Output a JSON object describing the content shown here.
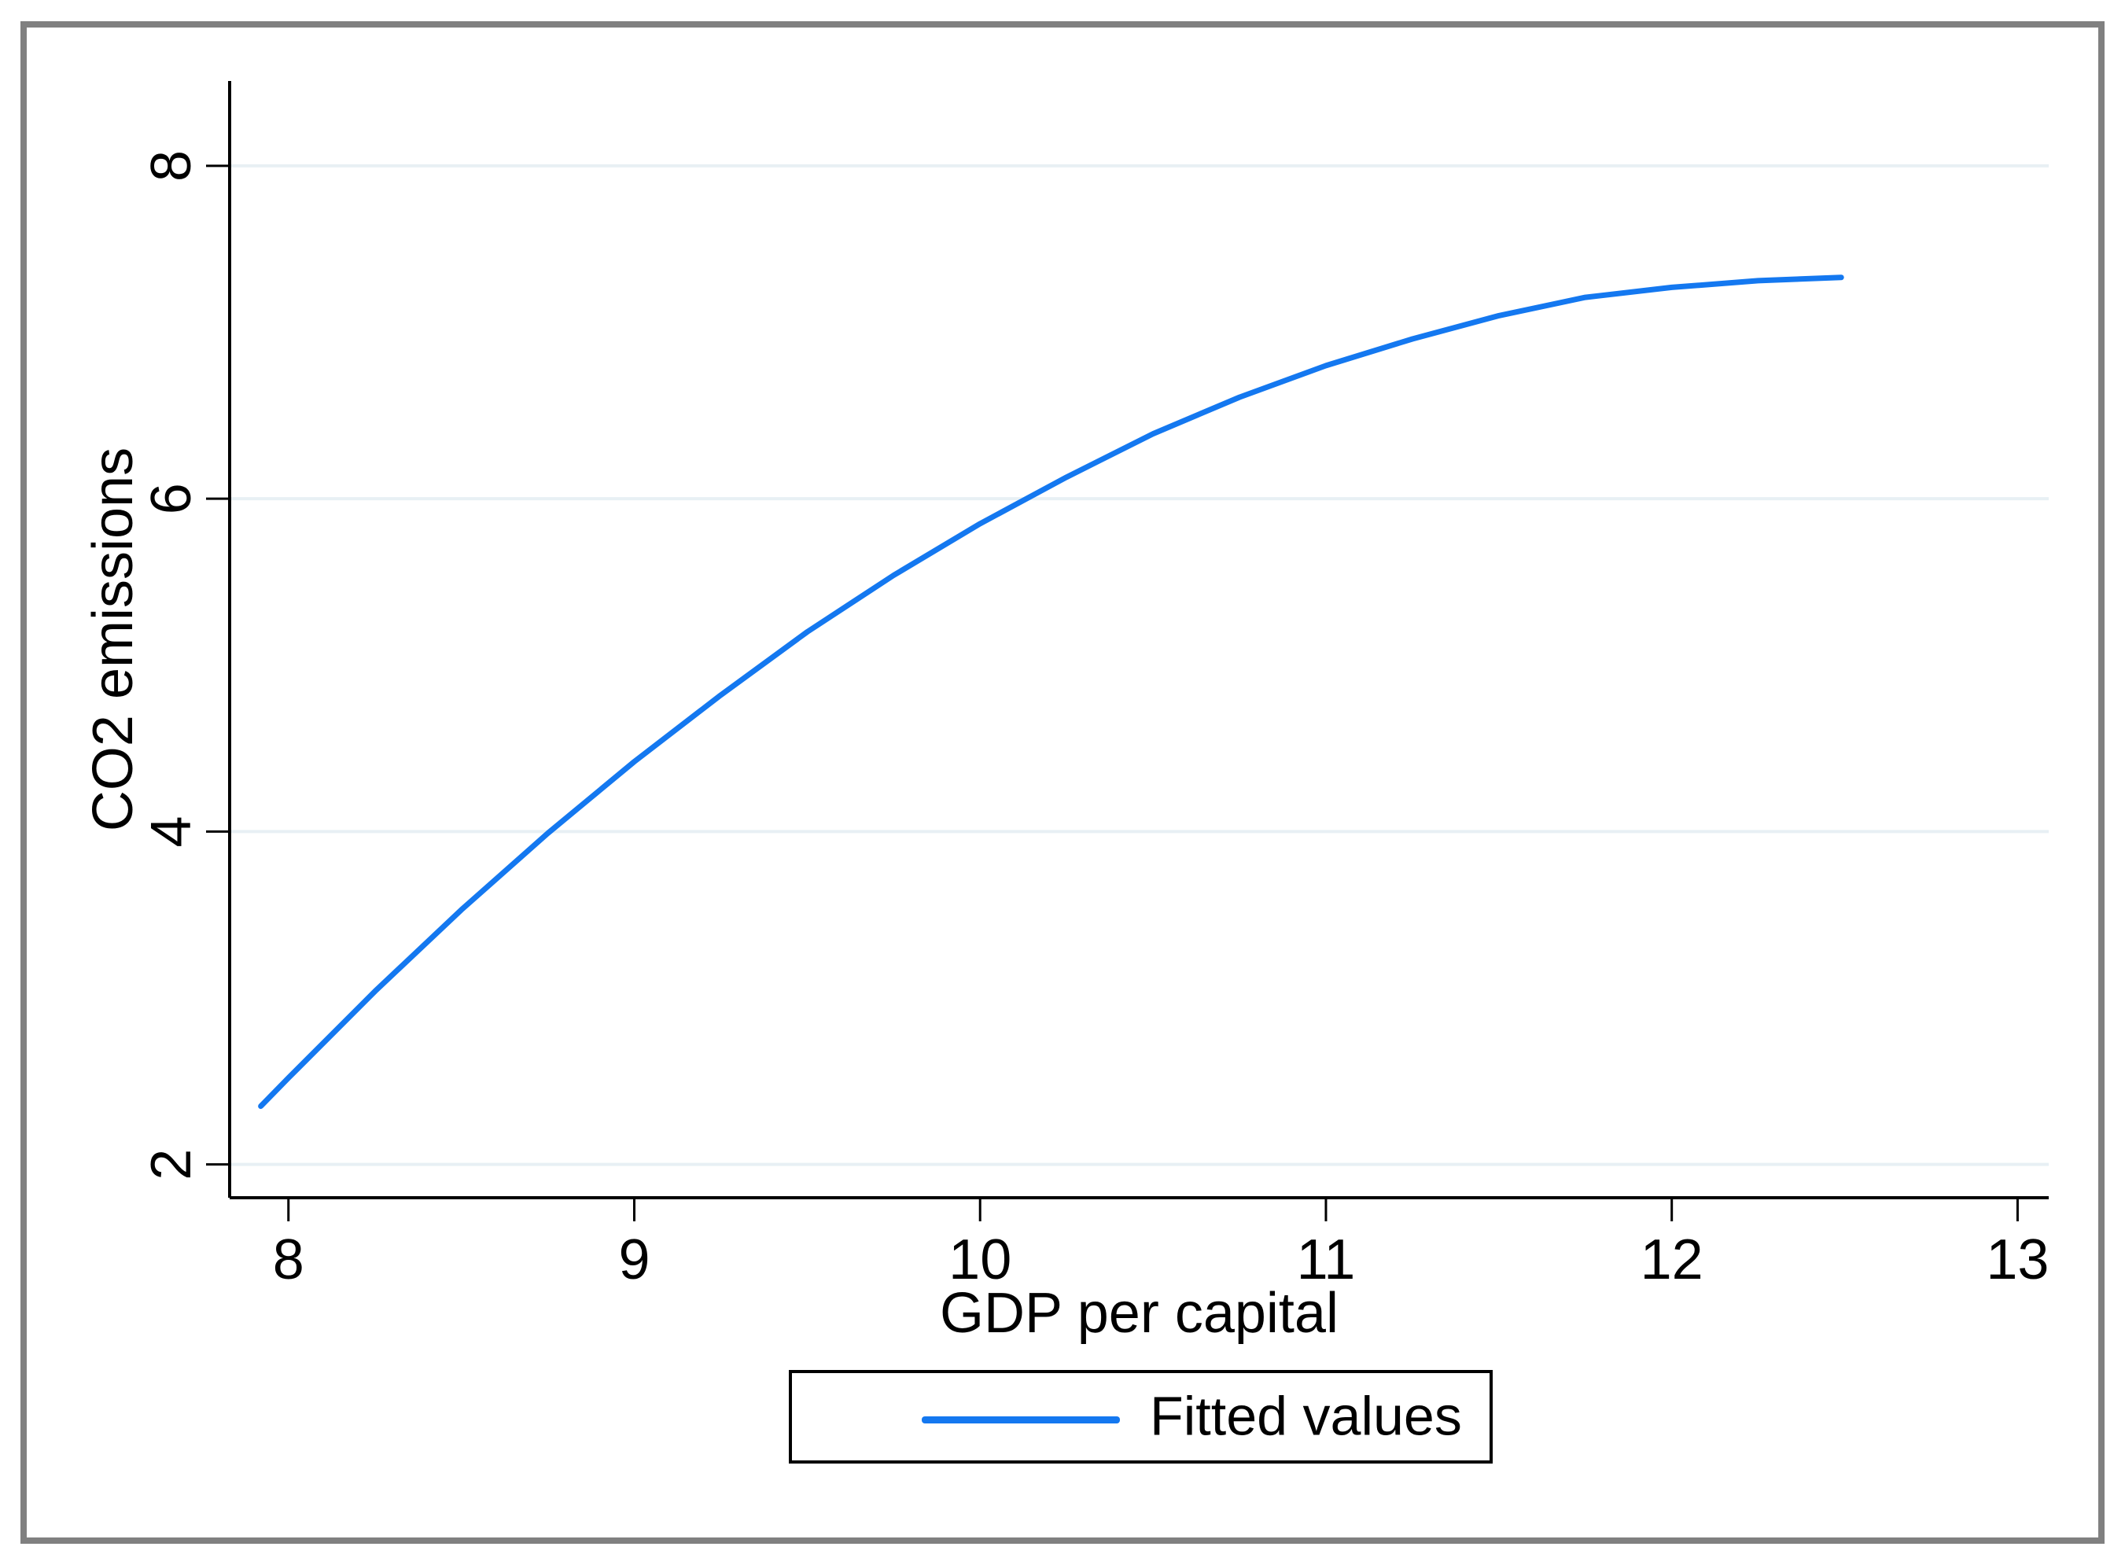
{
  "figure": {
    "background_color": "#ffffff",
    "frame_color": "#808080",
    "axis_color": "#000000",
    "text_color": "#000000"
  },
  "chart_data": {
    "type": "line",
    "title": "",
    "xlabel": "GDP per capital",
    "ylabel": "CO2 emissions",
    "x_ticks": [
      8,
      9,
      10,
      11,
      12,
      13
    ],
    "y_ticks": [
      2,
      4,
      6,
      8
    ],
    "xlim": [
      7.83,
      13.09
    ],
    "ylim": [
      1.8,
      8.51
    ],
    "grid": "horizontal",
    "gridline_color": "#e8f0f4",
    "line_color": "#1478f0",
    "legend": {
      "position": "bottom-center",
      "entries": [
        {
          "label": "Fitted values",
          "color": "#1478f0"
        }
      ]
    },
    "series": [
      {
        "name": "Fitted values",
        "points": [
          [
            7.92,
            2.35
          ],
          [
            8.0,
            2.52
          ],
          [
            8.25,
            3.04
          ],
          [
            8.5,
            3.53
          ],
          [
            8.75,
            3.99
          ],
          [
            9.0,
            4.42
          ],
          [
            9.25,
            4.82
          ],
          [
            9.5,
            5.2
          ],
          [
            9.75,
            5.54
          ],
          [
            10.0,
            5.85
          ],
          [
            10.25,
            6.13
          ],
          [
            10.5,
            6.39
          ],
          [
            10.75,
            6.61
          ],
          [
            11.0,
            6.8
          ],
          [
            11.25,
            6.96
          ],
          [
            11.5,
            7.1
          ],
          [
            11.75,
            7.21
          ],
          [
            12.0,
            7.27
          ],
          [
            12.25,
            7.31
          ],
          [
            12.49,
            7.33
          ]
        ]
      }
    ]
  }
}
